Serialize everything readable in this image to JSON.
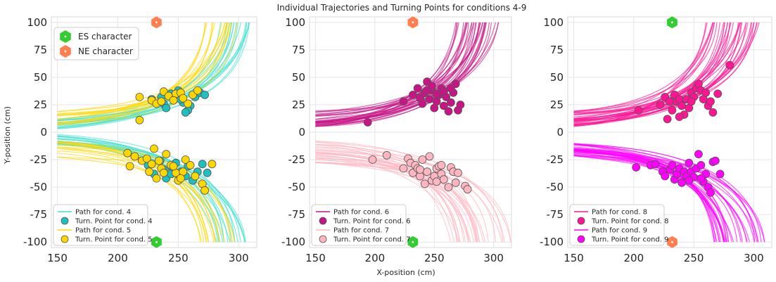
{
  "figure": {
    "title": "Individual Trajectories and Turning Points for conditions 4-9",
    "xlabel": "X-position (cm)",
    "ylabel": "Y-position (cm)"
  },
  "colors": {
    "es_character": "#33cc33",
    "ne_character": "#ff7f50",
    "cond4": "#40e0d0",
    "cond4_point": "#1fbfbf",
    "cond5": "#ffd700",
    "cond6": "#c71585",
    "cond7": "#ffb6c1",
    "cond8": "#ff1493",
    "cond9": "#ff00ff"
  },
  "chart_data": [
    {
      "type": "scatter",
      "panel": "left",
      "xlim": [
        145,
        315
      ],
      "ylim": [
        -105,
        105
      ],
      "xticks": [
        150,
        200,
        250,
        300
      ],
      "yticks": [
        100,
        75,
        50,
        25,
        0,
        -25,
        -50,
        -75,
        -100
      ],
      "grid": true,
      "characters": [
        {
          "name": "NE character",
          "x": 232,
          "y": 100,
          "color": "#ff7f50"
        },
        {
          "name": "ES character",
          "x": 232,
          "y": -100,
          "color": "#33cc33"
        }
      ],
      "character_legend": {
        "placement": "top-left",
        "entries": [
          {
            "label": "ES character",
            "color": "#33cc33"
          },
          {
            "label": "NE character",
            "color": "#ff7f50"
          }
        ]
      },
      "legend": {
        "placement": "bottom-left",
        "entries": [
          {
            "label": "Path for cond. 4",
            "kind": "line",
            "color": "#40e0d0"
          },
          {
            "label": "Turn. Point for cond. 4",
            "kind": "point",
            "color": "#1fbfbf"
          },
          {
            "label": "Path for cond. 5",
            "kind": "line",
            "color": "#ffd700"
          },
          {
            "label": "Turn. Point for cond. 5",
            "kind": "point",
            "color": "#ffd700"
          }
        ]
      },
      "groups": [
        {
          "name": "Path for cond. 4",
          "dir": 1,
          "count": 18,
          "color": "#40e0d0",
          "yStart": [
            2,
            12
          ],
          "xEnd": [
            285,
            312
          ],
          "points": [
            [
              228,
              30
            ],
            [
              238,
              26
            ],
            [
              246,
              33
            ],
            [
              250,
              38
            ],
            [
              254,
              27
            ],
            [
              260,
              24
            ],
            [
              264,
              32
            ],
            [
              258,
              20
            ],
            [
              244,
              35
            ],
            [
              268,
              36
            ],
            [
              272,
              34
            ],
            [
              236,
              32
            ],
            [
              252,
              30
            ],
            [
              256,
              18
            ],
            [
              240,
              22
            ]
          ],
          "pointColor": "#1fbfbf"
        },
        {
          "name": "Path for cond. 5",
          "dir": 1,
          "count": 16,
          "color": "#ffd700",
          "yStart": [
            6,
            20
          ],
          "xEnd": [
            272,
            302
          ],
          "points": [
            [
              218,
              11
            ],
            [
              218,
              32
            ],
            [
              228,
              29
            ],
            [
              232,
              26
            ],
            [
              238,
              37
            ],
            [
              242,
              33
            ],
            [
              248,
              35
            ],
            [
              252,
              36
            ],
            [
              258,
              26
            ],
            [
              262,
              34
            ],
            [
              266,
              38
            ],
            [
              246,
              29
            ],
            [
              236,
              28
            ],
            [
              254,
              31
            ]
          ],
          "pointColor": "#ffd700"
        },
        {
          "name": "Path for cond. 4",
          "dir": -1,
          "count": 18,
          "color": "#40e0d0",
          "yStart": [
            -12,
            -2
          ],
          "xEnd": [
            280,
            310
          ],
          "points": [
            [
              225,
              -30
            ],
            [
              230,
              -38
            ],
            [
              235,
              -26
            ],
            [
              240,
              -42
            ],
            [
              245,
              -33
            ],
            [
              248,
              -28
            ],
            [
              252,
              -36
            ],
            [
              256,
              -40
            ],
            [
              262,
              -44
            ],
            [
              266,
              -36
            ],
            [
              270,
              -29
            ],
            [
              274,
              -37
            ],
            [
              244,
              -38
            ],
            [
              258,
              -31
            ],
            [
              238,
              -34
            ]
          ],
          "pointColor": "#1fbfbf"
        },
        {
          "name": "Path for cond. 5",
          "dir": -1,
          "count": 16,
          "color": "#ffd700",
          "yStart": [
            -25,
            -8
          ],
          "xEnd": [
            268,
            298
          ],
          "points": [
            [
              208,
              -19
            ],
            [
              210,
              -31
            ],
            [
              214,
              -22
            ],
            [
              220,
              -26
            ],
            [
              224,
              -24
            ],
            [
              226,
              -36
            ],
            [
              228,
              -29
            ],
            [
              230,
              -15
            ],
            [
              234,
              -26
            ],
            [
              236,
              -33
            ],
            [
              240,
              -20
            ],
            [
              244,
              -30
            ],
            [
              248,
              -37
            ],
            [
              250,
              -44
            ],
            [
              254,
              -36
            ],
            [
              256,
              -25
            ],
            [
              260,
              -30
            ],
            [
              264,
              -40
            ],
            [
              270,
              -47
            ],
            [
              272,
              -53
            ],
            [
              278,
              -29
            ],
            [
              252,
              -42
            ],
            [
              246,
              -31
            ],
            [
              232,
              -42
            ],
            [
              238,
              -37
            ]
          ],
          "pointColor": "#ffd700"
        }
      ]
    },
    {
      "type": "scatter",
      "panel": "middle",
      "xlim": [
        145,
        315
      ],
      "ylim": [
        -105,
        105
      ],
      "xticks": [
        150,
        200,
        250,
        300
      ],
      "yticks": [
        100,
        75,
        50,
        25,
        0,
        -25,
        -50,
        -75,
        -100
      ],
      "grid": true,
      "characters": [
        {
          "name": "NE character",
          "x": 232,
          "y": 100,
          "color": "#ff7f50"
        },
        {
          "name": "ES character",
          "x": 232,
          "y": -100,
          "color": "#33cc33"
        }
      ],
      "legend": {
        "placement": "bottom-left",
        "entries": [
          {
            "label": "Path for cond. 6",
            "kind": "line",
            "color": "#c71585"
          },
          {
            "label": "Turn. Point for cond. 6",
            "kind": "point",
            "color": "#c71585"
          },
          {
            "label": "Path for cond. 7",
            "kind": "line",
            "color": "#ffb6c1"
          },
          {
            "label": "Turn. Point for cond. 7",
            "kind": "point",
            "color": "#ffb6c1"
          }
        ]
      },
      "groups": [
        {
          "name": "Path for cond. 6",
          "dir": 1,
          "count": 32,
          "color": "#c71585",
          "yStart": [
            5,
            20
          ],
          "xEnd": [
            268,
            305
          ],
          "points": [
            [
              194,
              9
            ],
            [
              224,
              28
            ],
            [
              232,
              34
            ],
            [
              236,
              40
            ],
            [
              238,
              31
            ],
            [
              240,
              26
            ],
            [
              242,
              36
            ],
            [
              244,
              46
            ],
            [
              246,
              30
            ],
            [
              248,
              38
            ],
            [
              250,
              22
            ],
            [
              252,
              28
            ],
            [
              254,
              34
            ],
            [
              256,
              40
            ],
            [
              258,
              24
            ],
            [
              260,
              32
            ],
            [
              262,
              19
            ],
            [
              264,
              27
            ],
            [
              266,
              36
            ],
            [
              268,
              44
            ],
            [
              270,
              20
            ],
            [
              272,
              25
            ],
            [
              244,
              38
            ],
            [
              248,
              42
            ],
            [
              252,
              35
            ],
            [
              258,
              37
            ],
            [
              264,
              40
            ]
          ],
          "pointColor": "#c71585"
        },
        {
          "name": "Path for cond. 7",
          "dir": -1,
          "count": 30,
          "color": "#ffb6c1",
          "yStart": [
            -28,
            -8
          ],
          "xEnd": [
            262,
            315
          ],
          "points": [
            [
              198,
              -25
            ],
            [
              210,
              -21
            ],
            [
              224,
              -33
            ],
            [
              228,
              -24
            ],
            [
              230,
              -28
            ],
            [
              232,
              -37
            ],
            [
              234,
              -30
            ],
            [
              236,
              -33
            ],
            [
              238,
              -40
            ],
            [
              240,
              -25
            ],
            [
              242,
              -47
            ],
            [
              244,
              -36
            ],
            [
              246,
              -22
            ],
            [
              248,
              -44
            ],
            [
              250,
              -40
            ],
            [
              252,
              -33
            ],
            [
              254,
              -31
            ],
            [
              256,
              -38
            ],
            [
              258,
              -43
            ],
            [
              262,
              -50
            ],
            [
              264,
              -32
            ],
            [
              266,
              -36
            ],
            [
              268,
              -46
            ],
            [
              270,
              -37
            ],
            [
              276,
              -49
            ],
            [
              278,
              -52
            ],
            [
              256,
              -30
            ],
            [
              252,
              -45
            ],
            [
              238,
              -34
            ]
          ],
          "pointColor": "#ffb6c1"
        }
      ]
    },
    {
      "type": "scatter",
      "panel": "right",
      "xlim": [
        145,
        315
      ],
      "ylim": [
        -105,
        105
      ],
      "xticks": [
        150,
        200,
        250,
        300
      ],
      "yticks": [
        100,
        75,
        50,
        25,
        0,
        -25,
        -50,
        -75,
        -100
      ],
      "grid": true,
      "characters": [
        {
          "name": "ES character",
          "x": 232,
          "y": 100,
          "color": "#33cc33"
        },
        {
          "name": "NE character",
          "x": 232,
          "y": -100,
          "color": "#ff7f50"
        }
      ],
      "legend": {
        "placement": "bottom-left",
        "entries": [
          {
            "label": "Path for cond. 8",
            "kind": "line",
            "color": "#ff1493"
          },
          {
            "label": "Turn. Point for cond. 8",
            "kind": "point",
            "color": "#ff1493"
          },
          {
            "label": "Path for cond. 9",
            "kind": "line",
            "color": "#ff00ff"
          },
          {
            "label": "Turn. Point for cond. 9",
            "kind": "point",
            "color": "#ff00ff"
          }
        ]
      },
      "groups": [
        {
          "name": "Path for cond. 8",
          "dir": 1,
          "count": 34,
          "color": "#ff1493",
          "yStart": [
            5,
            20
          ],
          "xEnd": [
            260,
            305
          ],
          "points": [
            [
              204,
              20
            ],
            [
              222,
              25
            ],
            [
              226,
              32
            ],
            [
              228,
              12
            ],
            [
              230,
              28
            ],
            [
              232,
              20
            ],
            [
              234,
              34
            ],
            [
              236,
              28
            ],
            [
              238,
              30
            ],
            [
              240,
              24
            ],
            [
              242,
              16
            ],
            [
              244,
              30
            ],
            [
              246,
              22
            ],
            [
              248,
              36
            ],
            [
              250,
              32
            ],
            [
              252,
              40
            ],
            [
              254,
              44
            ],
            [
              256,
              38
            ],
            [
              258,
              30
            ],
            [
              260,
              36
            ],
            [
              262,
              24
            ],
            [
              264,
              28
            ],
            [
              266,
              18
            ],
            [
              270,
              35
            ],
            [
              280,
              61
            ],
            [
              238,
              14
            ],
            [
              248,
              28
            ]
          ],
          "pointColor": "#ff1493"
        },
        {
          "name": "Path for cond. 9",
          "dir": -1,
          "count": 34,
          "color": "#ff00ff",
          "yStart": [
            -22,
            -10
          ],
          "xEnd": [
            262,
            310
          ],
          "points": [
            [
              202,
              -32
            ],
            [
              214,
              -30
            ],
            [
              218,
              -29
            ],
            [
              224,
              -36
            ],
            [
              226,
              -40
            ],
            [
              230,
              -34
            ],
            [
              232,
              -30
            ],
            [
              234,
              -43
            ],
            [
              236,
              -38
            ],
            [
              238,
              -33
            ],
            [
              240,
              -46
            ],
            [
              242,
              -36
            ],
            [
              244,
              -40
            ],
            [
              246,
              -28
            ],
            [
              248,
              -36
            ],
            [
              250,
              -41
            ],
            [
              252,
              -33
            ],
            [
              254,
              -20
            ],
            [
              256,
              -30
            ],
            [
              258,
              -45
            ],
            [
              260,
              -38
            ],
            [
              262,
              -50
            ],
            [
              264,
              -55
            ],
            [
              266,
              -27
            ],
            [
              268,
              -26
            ],
            [
              272,
              -38
            ],
            [
              246,
              -44
            ],
            [
              256,
              -42
            ]
          ],
          "pointColor": "#ff00ff"
        }
      ]
    }
  ]
}
